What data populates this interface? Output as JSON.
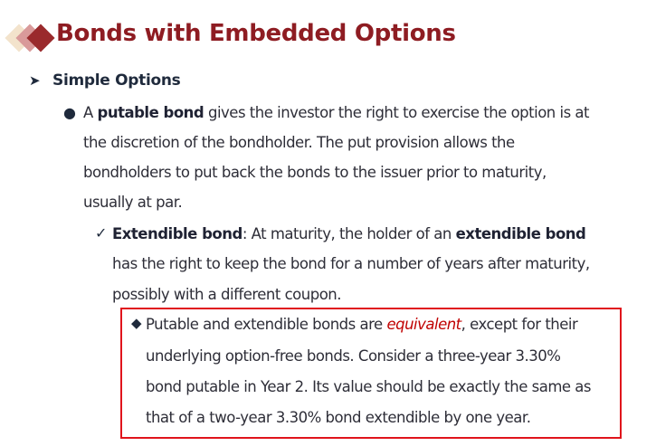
{
  "title": "Bonds with Embedded Options",
  "heading": "Simple Options",
  "colors": {
    "title": "#8e1c22",
    "highlight_box": "#e0141c",
    "emphasis": "#c00000"
  },
  "icons": {
    "logo": "stacked-diamonds",
    "heading_bullet": "arrowhead",
    "bullet1": "filled-circle",
    "bullet2": "checkmark",
    "bullet3": "filled-diamond"
  },
  "putable": {
    "l1a": "A ",
    "l1b": "putable bond",
    "l1c": "  gives the investor the right to exercise the option is at",
    "l2": "the discretion of the bondholder. The put provision allows the",
    "l3": "bondholders to put back the bonds to the issuer prior to maturity,",
    "l4": "usually at par."
  },
  "extendible": {
    "l1a": "Extendible bond",
    "l1b": ": At maturity, the holder of an ",
    "l1c": "extendible bond",
    "l2": "has the right to keep the bond for a number of years after maturity,",
    "l3": "possibly with a different coupon."
  },
  "note": {
    "l1a": "Putable and extendible bonds are ",
    "l1b": "equivalent",
    "l1c": ", except for their",
    "l2": "underlying option-free bonds. Consider a three-year 3.30%",
    "l3": "bond putable in Year 2.  Its value should be exactly the same as",
    "l4": "that of a two-year 3.30% bond extendible by one year."
  }
}
